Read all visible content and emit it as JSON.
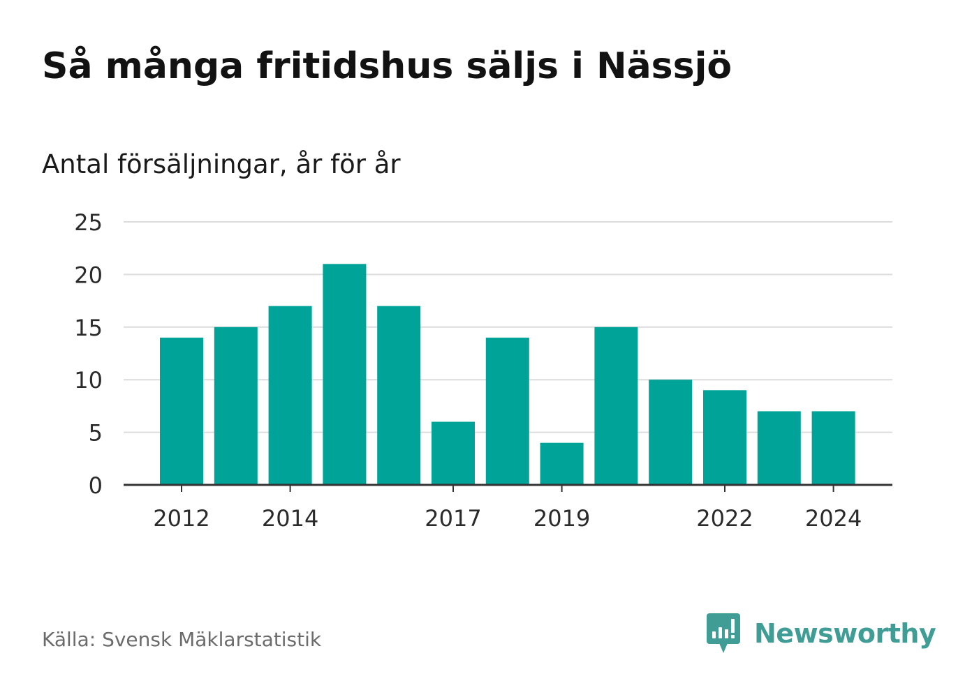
{
  "title": "Så många fritidshus säljs i Nässjö",
  "subtitle": "Antal försäljningar, år för år",
  "source": "Källa: Svensk Mäklarstatistik",
  "brand": {
    "name": "Newsworthy",
    "icon": "newsworthy-logo-icon",
    "color": "#3f9d96"
  },
  "colors": {
    "bar": "#00a397",
    "grid": "#dcdcdc",
    "axis": "#333333",
    "tick_text": "#2a2a2a"
  },
  "chart_data": {
    "type": "bar",
    "categories": [
      "2012",
      "2013",
      "2014",
      "2015",
      "2016",
      "2017",
      "2018",
      "2019",
      "2020",
      "2021",
      "2022",
      "2023",
      "2024"
    ],
    "values": [
      14,
      15,
      17,
      21,
      17,
      6,
      14,
      4,
      15,
      10,
      9,
      7,
      7
    ],
    "x_tick_labels": [
      "2012",
      "2014",
      "2017",
      "2019",
      "2022",
      "2024"
    ],
    "y_ticks": [
      0,
      5,
      10,
      15,
      20,
      25
    ],
    "ylim": [
      0,
      25
    ],
    "grid": true,
    "legend": false,
    "title": "Så många fritidshus säljs i Nässjö",
    "subtitle": "Antal försäljningar, år för år",
    "xlabel": "",
    "ylabel": ""
  }
}
